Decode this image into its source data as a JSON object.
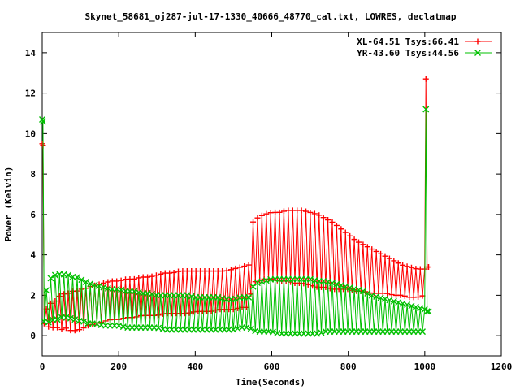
{
  "chart_data": {
    "type": "line",
    "title": "Skynet_58681_oj287-jul-17-1330_40666_48770_cal.txt, LOWRES, declatmap",
    "xlabel": "Time(Seconds)",
    "ylabel": "Power (Kelvin)",
    "xlim": [
      0,
      1200
    ],
    "ylim": [
      -1,
      15
    ],
    "xticks": [
      0,
      200,
      400,
      600,
      800,
      1000,
      1200
    ],
    "yticks": [
      0,
      2,
      4,
      6,
      8,
      10,
      12,
      14
    ],
    "grid": false,
    "legend": "top-right",
    "series": [
      {
        "name": "XL-64.51 Tsys:66.41",
        "color": "#ff0000",
        "marker": "plus",
        "x": [
          0,
          2,
          5,
          10,
          20,
          30,
          40,
          50,
          60,
          70,
          80,
          90,
          100,
          110,
          120,
          140,
          160,
          180,
          200,
          220,
          240,
          260,
          280,
          300,
          320,
          340,
          360,
          380,
          400,
          420,
          440,
          460,
          480,
          500,
          520,
          540,
          550,
          560,
          580,
          600,
          620,
          640,
          660,
          680,
          700,
          720,
          740,
          760,
          780,
          800,
          820,
          840,
          860,
          880,
          900,
          920,
          940,
          960,
          980,
          1000,
          1003,
          1006,
          1010
        ],
        "lo": [
          9.5,
          9.4,
          0.6,
          0.5,
          0.4,
          0.4,
          0.4,
          0.3,
          0.4,
          0.3,
          0.2,
          0.3,
          0.3,
          0.4,
          0.5,
          0.6,
          0.7,
          0.8,
          0.8,
          0.9,
          0.9,
          1.0,
          1.0,
          1.0,
          1.1,
          1.1,
          1.1,
          1.1,
          1.2,
          1.2,
          1.2,
          1.3,
          1.3,
          1.3,
          1.4,
          1.4,
          2.6,
          2.7,
          2.8,
          2.8,
          2.7,
          2.7,
          2.6,
          2.6,
          2.5,
          2.4,
          2.4,
          2.3,
          2.3,
          2.3,
          2.2,
          2.2,
          2.1,
          2.1,
          2.1,
          2.0,
          2.0,
          1.9,
          1.9,
          2.0,
          12.7,
          3.4,
          3.4
        ],
        "hi": [
          9.5,
          9.4,
          1.0,
          1.3,
          1.6,
          1.6,
          1.9,
          2.0,
          2.1,
          2.1,
          2.2,
          2.2,
          2.3,
          2.3,
          2.4,
          2.5,
          2.6,
          2.7,
          2.7,
          2.8,
          2.8,
          2.9,
          2.9,
          3.0,
          3.1,
          3.1,
          3.2,
          3.2,
          3.2,
          3.2,
          3.2,
          3.2,
          3.2,
          3.3,
          3.4,
          3.5,
          5.6,
          5.8,
          6.0,
          6.1,
          6.1,
          6.2,
          6.2,
          6.2,
          6.1,
          6.0,
          5.8,
          5.6,
          5.3,
          5.0,
          4.7,
          4.5,
          4.3,
          4.1,
          3.9,
          3.7,
          3.5,
          3.4,
          3.3,
          3.3,
          12.7,
          3.4,
          3.4
        ]
      },
      {
        "name": "YR-43.60 Tsys:44.56",
        "color": "#00c000",
        "marker": "cross",
        "x": [
          0,
          2,
          5,
          10,
          20,
          30,
          40,
          50,
          60,
          70,
          80,
          90,
          100,
          110,
          120,
          140,
          160,
          180,
          200,
          220,
          240,
          260,
          280,
          300,
          320,
          340,
          360,
          380,
          400,
          420,
          440,
          460,
          480,
          500,
          520,
          540,
          550,
          560,
          580,
          600,
          620,
          640,
          660,
          680,
          700,
          720,
          740,
          760,
          780,
          800,
          820,
          840,
          860,
          880,
          900,
          920,
          940,
          960,
          980,
          1000,
          1003,
          1006,
          1010
        ],
        "lo": [
          10.7,
          10.6,
          0.7,
          0.6,
          0.7,
          0.8,
          0.8,
          0.9,
          0.9,
          0.9,
          0.8,
          0.8,
          0.7,
          0.7,
          0.6,
          0.6,
          0.5,
          0.5,
          0.5,
          0.4,
          0.4,
          0.4,
          0.4,
          0.4,
          0.3,
          0.3,
          0.3,
          0.3,
          0.3,
          0.3,
          0.3,
          0.3,
          0.3,
          0.3,
          0.4,
          0.4,
          0.3,
          0.2,
          0.2,
          0.2,
          0.1,
          0.1,
          0.1,
          0.1,
          0.1,
          0.1,
          0.2,
          0.2,
          0.2,
          0.2,
          0.2,
          0.2,
          0.2,
          0.2,
          0.2,
          0.2,
          0.2,
          0.2,
          0.2,
          0.2,
          11.2,
          1.2,
          1.2
        ],
        "hi": [
          10.7,
          10.6,
          1.5,
          2.2,
          2.8,
          3.0,
          3.0,
          3.1,
          3.0,
          3.0,
          2.9,
          2.9,
          2.8,
          2.7,
          2.6,
          2.5,
          2.4,
          2.3,
          2.3,
          2.2,
          2.2,
          2.1,
          2.1,
          2.0,
          2.0,
          2.0,
          2.0,
          2.0,
          1.9,
          1.9,
          1.9,
          1.9,
          1.8,
          1.8,
          1.9,
          1.9,
          2.4,
          2.6,
          2.7,
          2.8,
          2.8,
          2.8,
          2.8,
          2.8,
          2.8,
          2.7,
          2.7,
          2.6,
          2.5,
          2.4,
          2.3,
          2.2,
          2.0,
          1.9,
          1.8,
          1.7,
          1.6,
          1.5,
          1.4,
          1.3,
          11.2,
          1.2,
          1.2
        ]
      }
    ]
  }
}
